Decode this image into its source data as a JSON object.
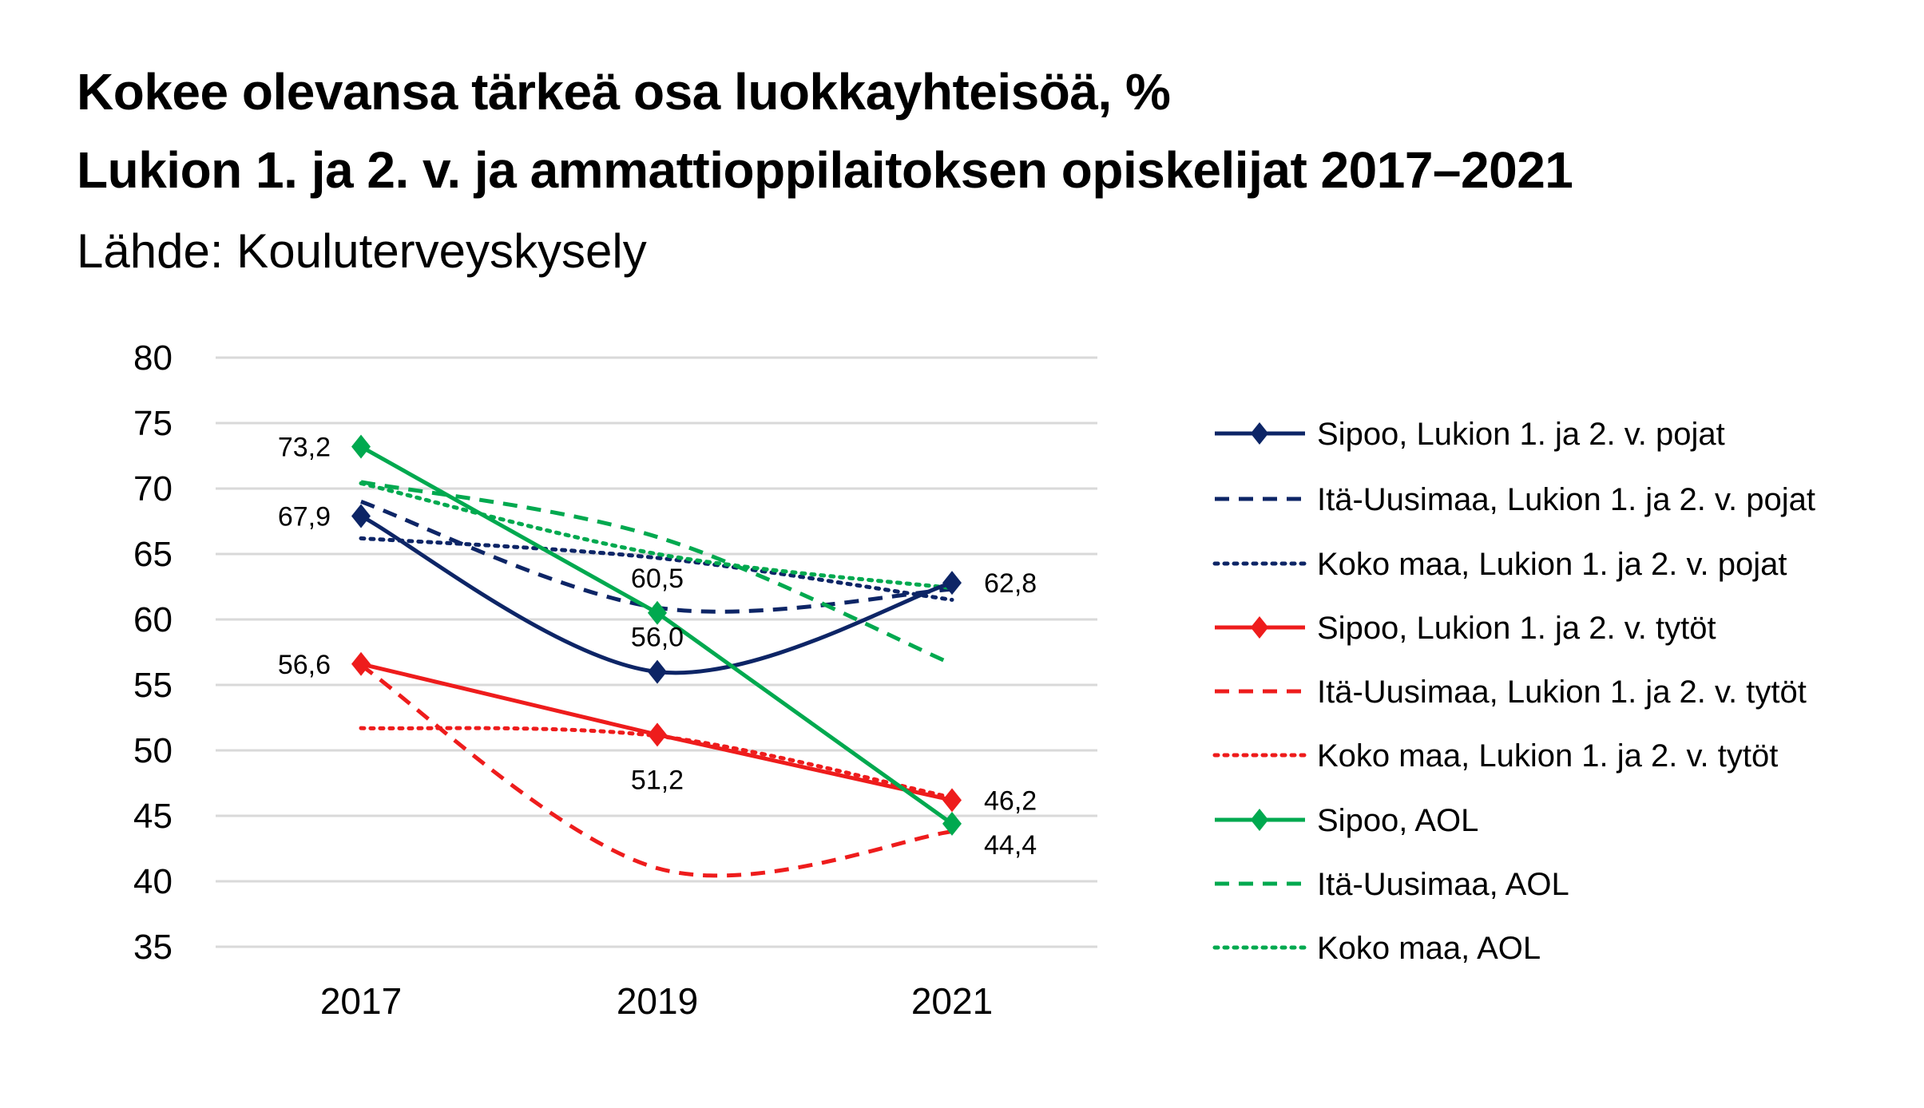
{
  "chart_data": {
    "type": "line",
    "title": "Kokee olevansa tärkeä osa luokkayhteisöä, %",
    "subtitle": "Lukion 1. ja 2. v. ja ammattioppilaitoksen opiskelijat 2017–2021",
    "source": "Lähde: Kouluterveyskysely",
    "categories": [
      "2017",
      "2019",
      "2021"
    ],
    "ylim": [
      35,
      80
    ],
    "yticks": [
      80,
      75,
      70,
      65,
      60,
      55,
      50,
      45,
      40,
      35
    ],
    "grid": true,
    "legend_position": "right",
    "series": [
      {
        "name": "Sipoo, Lukion 1. ja 2. v. pojat",
        "values": [
          67.9,
          56.0,
          62.8
        ],
        "labels": [
          "67,9",
          "56,0",
          "62,8"
        ],
        "color": "#0d2566",
        "style": "solid",
        "marker": "diamond",
        "smooth": true
      },
      {
        "name": "Itä-Uusimaa, Lukion 1. ja 2. v. pojat",
        "values": [
          69.0,
          60.9,
          62.3
        ],
        "color": "#0d2566",
        "style": "dashed",
        "smooth": true
      },
      {
        "name": "Koko maa, Lukion 1. ja 2. v. pojat",
        "values": [
          66.2,
          64.7,
          61.5
        ],
        "color": "#0d2566",
        "style": "dotted",
        "smooth": true
      },
      {
        "name": "Sipoo, Lukion 1. ja 2. v. tytöt",
        "values": [
          56.6,
          51.2,
          46.2
        ],
        "labels": [
          "56,6",
          "51,2",
          "46,2"
        ],
        "color": "#ee1c1c",
        "style": "solid",
        "marker": "diamond",
        "smooth": false
      },
      {
        "name": "Itä-Uusimaa, Lukion 1. ja 2. v. tytöt",
        "values": [
          56.5,
          41.0,
          43.8
        ],
        "color": "#ee1c1c",
        "style": "dashed",
        "smooth": true
      },
      {
        "name": "Koko maa, Lukion 1. ja 2. v. tytöt",
        "values": [
          51.7,
          51.1,
          46.4
        ],
        "color": "#ee1c1c",
        "style": "dotted",
        "smooth": true
      },
      {
        "name": "Sipoo, AOL",
        "values": [
          73.2,
          60.5,
          44.4
        ],
        "labels": [
          "73,2",
          "60,5",
          "44,4"
        ],
        "color": "#00a94f",
        "style": "solid",
        "marker": "diamond",
        "smooth": false
      },
      {
        "name": "Itä-Uusimaa, AOL",
        "values": [
          70.5,
          66.3,
          56.6
        ],
        "color": "#00a94f",
        "style": "dashed",
        "smooth": true
      },
      {
        "name": "Koko maa, AOL",
        "values": [
          70.4,
          65.0,
          62.4
        ],
        "color": "#00a94f",
        "style": "dotted",
        "smooth": true
      }
    ]
  }
}
